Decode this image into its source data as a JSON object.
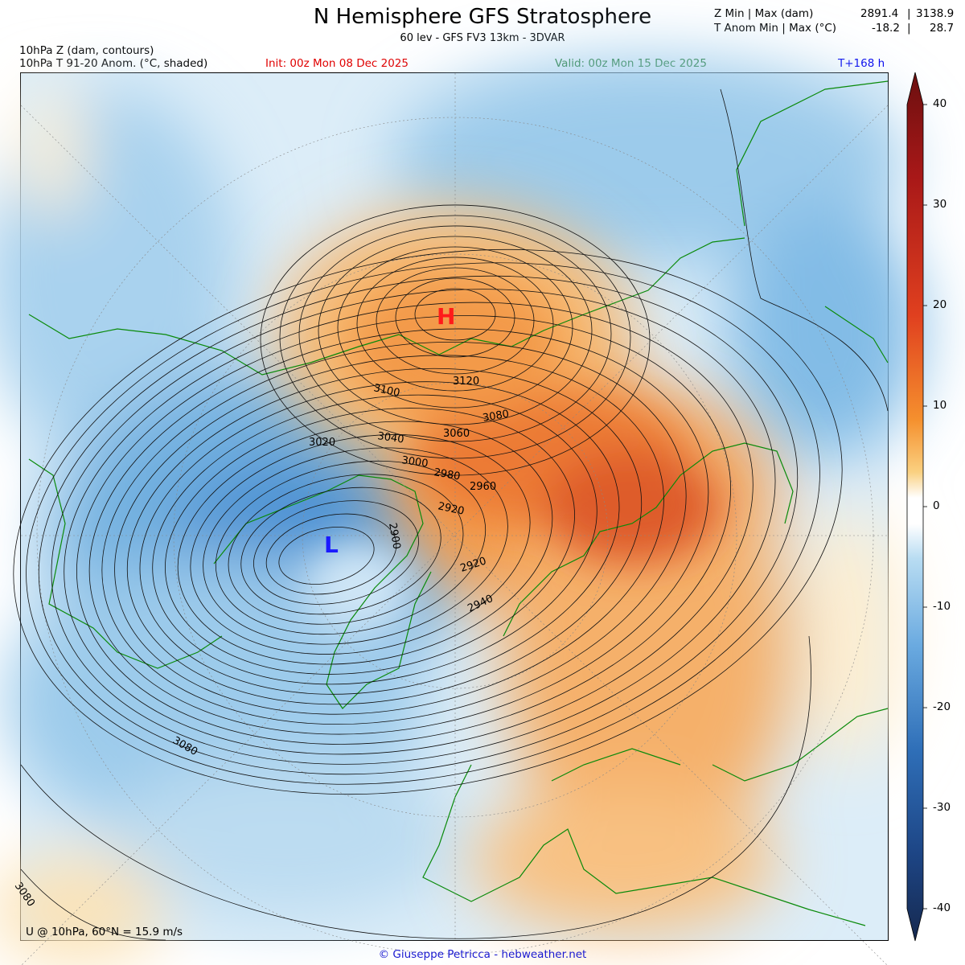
{
  "header": {
    "title": "N Hemisphere GFS Stratosphere",
    "subtitle": "60 lev - GFS FV3 13km - 3DVAR",
    "line1": "10hPa Z (dam, contours)",
    "line2": "10hPa T 91-20 Anom. (°C, shaded)",
    "init": "Init: 00z Mon 08 Dec 2025",
    "valid": "Valid: 00z Mon 15 Dec 2025",
    "lead": "T+168 h"
  },
  "stats": {
    "z_label": "Z Min | Max (dam)",
    "z_min": "2891.4",
    "z_max": "3138.9",
    "t_label": "T Anom Min | Max (°C)",
    "t_min": "-18.2",
    "t_max": "28.7",
    "sep": "|"
  },
  "map": {
    "high_label": "H",
    "low_label": "L",
    "wind_note": "U @ 10hPa, 60°N = 15.9 m/s",
    "contour_labels": [
      "3120",
      "3100",
      "3080",
      "3060",
      "3040",
      "3020",
      "3000",
      "2980",
      "2960",
      "2920",
      "2900",
      "2920",
      "2940",
      "3080",
      "3080"
    ]
  },
  "colorbar": {
    "ticks": [
      "40",
      "30",
      "20",
      "10",
      "0",
      "-10",
      "-20",
      "-30",
      "-40"
    ],
    "range": [
      -40,
      40
    ]
  },
  "colors": {
    "init": "#e00000",
    "valid": "#006600",
    "lead": "#0000ee",
    "high": "#ff1a1a",
    "low": "#1a1aff",
    "coast": "#0a8a0a"
  },
  "footer": "© Giuseppe Petricca - hebweather.net"
}
